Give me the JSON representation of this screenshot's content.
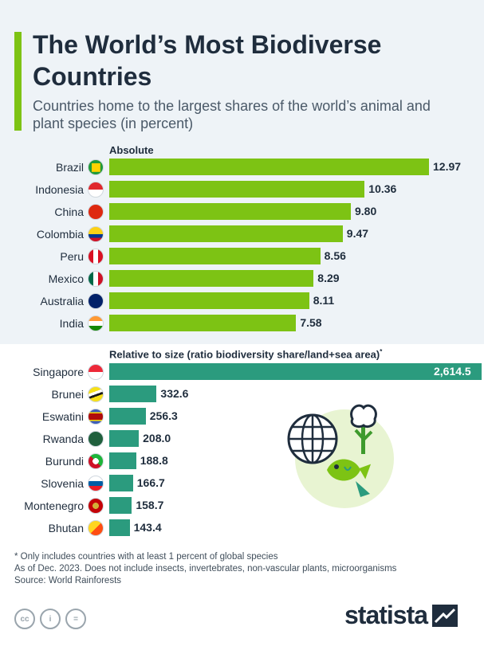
{
  "title": "The World’s Most Biodiverse Countries",
  "subtitle": "Countries home to the largest shares of the world’s animal and plant species (in percent)",
  "colors": {
    "accent": "#7dc314",
    "absolute_bar": "#7dc314",
    "relative_bar": "#2b9b7e",
    "text": "#1f2d3d"
  },
  "chart_data": [
    {
      "type": "bar",
      "orientation": "horizontal",
      "section_label": "Absolute",
      "categories": [
        "Brazil",
        "Indonesia",
        "China",
        "Colombia",
        "Peru",
        "Mexico",
        "Australia",
        "India"
      ],
      "values": [
        12.97,
        10.36,
        9.8,
        9.47,
        8.56,
        8.29,
        8.11,
        7.58
      ],
      "value_labels": [
        "12.97",
        "10.36",
        "9.80",
        "9.47",
        "8.56",
        "8.29",
        "8.11",
        "7.58"
      ],
      "flag_icons": [
        "brazil-flag-icon",
        "indonesia-flag-icon",
        "china-flag-icon",
        "colombia-flag-icon",
        "peru-flag-icon",
        "mexico-flag-icon",
        "australia-flag-icon",
        "india-flag-icon"
      ],
      "xlim": [
        0,
        12.97
      ]
    },
    {
      "type": "bar",
      "orientation": "horizontal",
      "section_label": "Relative to size (ratio biodiversity share/land+sea area)",
      "section_label_mark": "*",
      "categories": [
        "Singapore",
        "Brunei",
        "Eswatini",
        "Rwanda",
        "Burundi",
        "Slovenia",
        "Montenegro",
        "Bhutan"
      ],
      "values": [
        2614.5,
        332.6,
        256.3,
        208.0,
        188.8,
        166.7,
        158.7,
        143.4
      ],
      "value_labels": [
        "2,614.5",
        "332.6",
        "256.3",
        "208.0",
        "188.8",
        "166.7",
        "158.7",
        "143.4"
      ],
      "flag_icons": [
        "singapore-flag-icon",
        "brunei-flag-icon",
        "eswatini-flag-icon",
        "rwanda-flag-icon",
        "burundi-flag-icon",
        "slovenia-flag-icon",
        "montenegro-flag-icon",
        "bhutan-flag-icon"
      ],
      "xlim": [
        0,
        2614.5
      ]
    }
  ],
  "footnotes": {
    "note1": "* Only includes countries with at least 1 percent of global species",
    "note2": "As of Dec. 2023. Does not include insects, invertebrates, non-vascular plants, microorganisms",
    "source": "Source: World Rainforests"
  },
  "license_icons": [
    "cc-icon",
    "attribution-icon",
    "no-derivatives-icon"
  ],
  "license_labels": [
    "cc",
    "i",
    "="
  ],
  "brand": "statista"
}
